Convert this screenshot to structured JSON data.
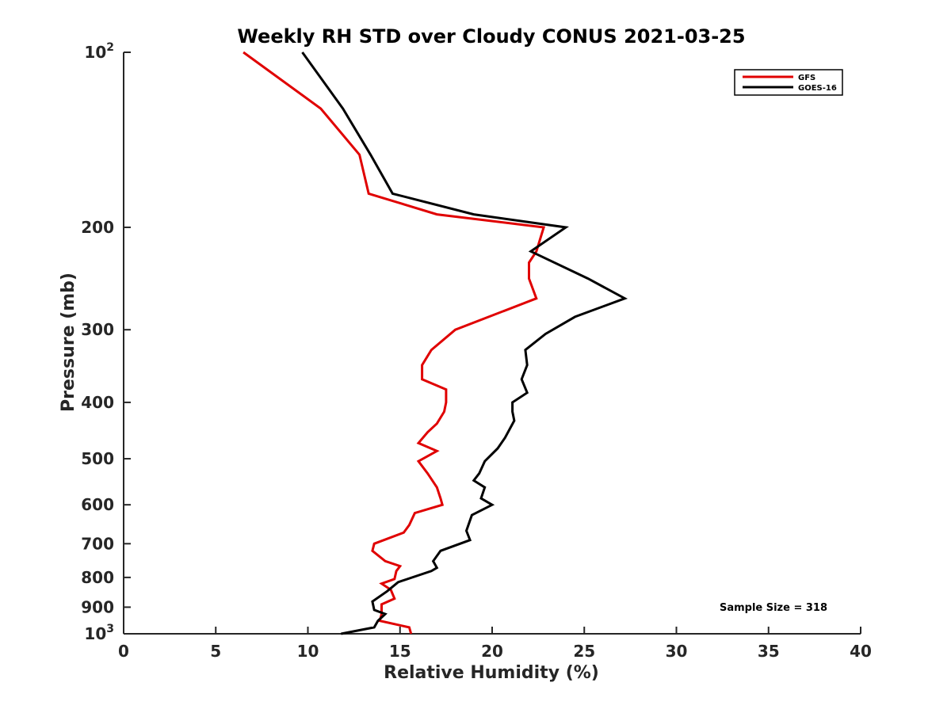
{
  "chart_data": {
    "type": "line",
    "title": "Weekly RH STD over Cloudy CONUS 2021-03-25",
    "xlabel": "Relative Humidity (%)",
    "ylabel": "Pressure (mb)",
    "xlim": [
      0,
      40
    ],
    "ylim": [
      100,
      1000
    ],
    "yscale": "log",
    "y_reversed": true,
    "grid": false,
    "legend_position": "top-right",
    "x_ticks": [
      {
        "value": 0,
        "label": "0"
      },
      {
        "value": 5,
        "label": "5"
      },
      {
        "value": 10,
        "label": "10"
      },
      {
        "value": 15,
        "label": "15"
      },
      {
        "value": 20,
        "label": "20"
      },
      {
        "value": 25,
        "label": "25"
      },
      {
        "value": 30,
        "label": "30"
      },
      {
        "value": 35,
        "label": "35"
      },
      {
        "value": 40,
        "label": "40"
      }
    ],
    "y_ticks": [
      {
        "value": 100,
        "base": "10",
        "exp": "2"
      },
      {
        "value": 200,
        "label": "200"
      },
      {
        "value": 300,
        "label": "300"
      },
      {
        "value": 400,
        "label": "400"
      },
      {
        "value": 500,
        "label": "500"
      },
      {
        "value": 600,
        "label": "600"
      },
      {
        "value": 700,
        "label": "700"
      },
      {
        "value": 800,
        "label": "800"
      },
      {
        "value": 900,
        "label": "900"
      },
      {
        "value": 1000,
        "base": "10",
        "exp": "3"
      }
    ],
    "series": [
      {
        "name": "GFS",
        "color": "#e00000",
        "points": [
          [
            6.5,
            100
          ],
          [
            10.7,
            125
          ],
          [
            12.8,
            150
          ],
          [
            13.3,
            175
          ],
          [
            17.0,
            190
          ],
          [
            22.8,
            200
          ],
          [
            22.4,
            220
          ],
          [
            22.0,
            230
          ],
          [
            22.0,
            245
          ],
          [
            22.4,
            265
          ],
          [
            18.0,
            300
          ],
          [
            16.7,
            325
          ],
          [
            16.2,
            345
          ],
          [
            16.2,
            365
          ],
          [
            17.5,
            380
          ],
          [
            17.5,
            400
          ],
          [
            17.4,
            415
          ],
          [
            17.0,
            435
          ],
          [
            16.5,
            450
          ],
          [
            16.0,
            470
          ],
          [
            17.0,
            485
          ],
          [
            16.0,
            505
          ],
          [
            16.5,
            530
          ],
          [
            17.0,
            560
          ],
          [
            17.2,
            585
          ],
          [
            17.3,
            600
          ],
          [
            15.8,
            620
          ],
          [
            15.5,
            650
          ],
          [
            15.2,
            670
          ],
          [
            13.6,
            700
          ],
          [
            13.5,
            720
          ],
          [
            14.2,
            750
          ],
          [
            15.0,
            765
          ],
          [
            14.8,
            780
          ],
          [
            14.7,
            805
          ],
          [
            14.0,
            820
          ],
          [
            14.5,
            840
          ],
          [
            14.7,
            870
          ],
          [
            14.0,
            890
          ],
          [
            14.0,
            925
          ],
          [
            13.9,
            950
          ],
          [
            15.5,
            975
          ],
          [
            15.6,
            1000
          ]
        ]
      },
      {
        "name": "GOES-16",
        "color": "#000000",
        "points": [
          [
            9.7,
            100
          ],
          [
            11.9,
            125
          ],
          [
            13.4,
            150
          ],
          [
            14.6,
            175
          ],
          [
            19.0,
            190
          ],
          [
            24.0,
            200
          ],
          [
            22.1,
            220
          ],
          [
            25.2,
            245
          ],
          [
            27.2,
            265
          ],
          [
            24.5,
            285
          ],
          [
            22.9,
            305
          ],
          [
            21.8,
            325
          ],
          [
            21.9,
            345
          ],
          [
            21.6,
            365
          ],
          [
            21.9,
            385
          ],
          [
            21.1,
            400
          ],
          [
            21.1,
            415
          ],
          [
            21.2,
            430
          ],
          [
            20.7,
            460
          ],
          [
            20.3,
            480
          ],
          [
            19.6,
            505
          ],
          [
            19.3,
            530
          ],
          [
            19.0,
            545
          ],
          [
            19.6,
            560
          ],
          [
            19.4,
            585
          ],
          [
            20.0,
            600
          ],
          [
            18.9,
            625
          ],
          [
            18.6,
            665
          ],
          [
            18.8,
            690
          ],
          [
            17.2,
            720
          ],
          [
            16.8,
            750
          ],
          [
            17.0,
            770
          ],
          [
            16.7,
            780
          ],
          [
            14.9,
            815
          ],
          [
            14.3,
            845
          ],
          [
            13.5,
            880
          ],
          [
            13.6,
            910
          ],
          [
            14.2,
            925
          ],
          [
            13.8,
            950
          ],
          [
            13.6,
            975
          ],
          [
            11.8,
            1000
          ]
        ]
      }
    ],
    "legend": [
      "GFS",
      "GOES-16"
    ],
    "annotation": "Sample Size = 318"
  }
}
